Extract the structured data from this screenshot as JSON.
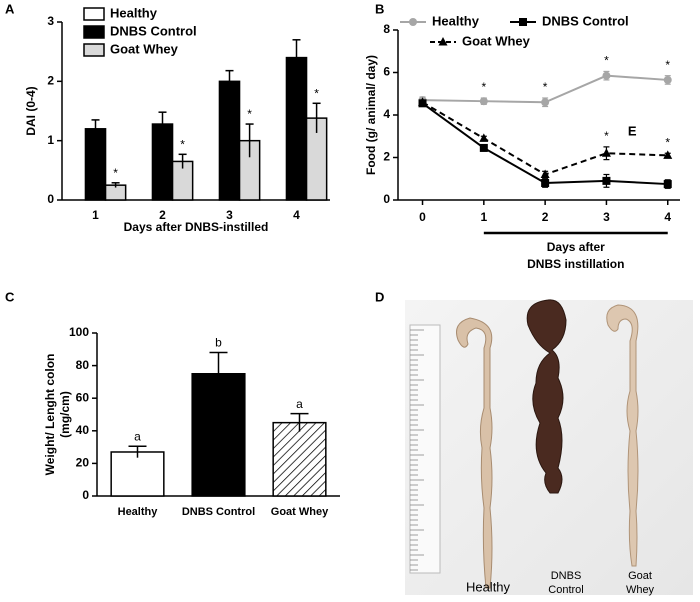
{
  "chart_data": [
    {
      "type": "bar",
      "panel": "A",
      "ylabel": "DAI (0-4)",
      "xlabel": "Days after DNBS-instilled",
      "categories": [
        "1",
        "2",
        "3",
        "4"
      ],
      "ylim": [
        0,
        3
      ],
      "yticks": [
        0,
        1,
        2,
        3
      ],
      "legend": "top-left",
      "series": [
        {
          "name": "Healthy",
          "color": "#ffffff",
          "values": [
            0,
            0,
            0,
            0
          ]
        },
        {
          "name": "DNBS Control",
          "color": "#000000",
          "values": [
            1.2,
            1.28,
            2.0,
            2.4
          ],
          "errors": [
            0.15,
            0.2,
            0.18,
            0.3
          ]
        },
        {
          "name": "Goat Whey",
          "color": "#d9d9d9",
          "values": [
            0.25,
            0.65,
            1.0,
            1.38
          ],
          "errors": [
            0.04,
            0.12,
            0.28,
            0.25
          ],
          "point_labels": [
            "*",
            "*",
            "*",
            "*"
          ]
        }
      ]
    },
    {
      "type": "line",
      "panel": "B",
      "ylabel": "Food (g/ animal/ day)",
      "xlabel": [
        "Days after",
        "DNBS instillation"
      ],
      "x": [
        0,
        1,
        2,
        3,
        4
      ],
      "xlim": [
        -0.4,
        4.2
      ],
      "xticks": [
        0,
        1,
        2,
        3,
        4
      ],
      "ylim": [
        0,
        8
      ],
      "yticks": [
        0,
        2,
        4,
        6,
        8
      ],
      "legend": "top",
      "series": [
        {
          "name": "Healthy",
          "color": "#a6a6a6",
          "marker": "circle",
          "dashed": false,
          "values": [
            4.7,
            4.65,
            4.6,
            5.85,
            5.65
          ],
          "errors": [
            0.15,
            0.15,
            0.2,
            0.2,
            0.2
          ],
          "point_labels": [
            null,
            "*",
            "*",
            "*",
            "*"
          ]
        },
        {
          "name": "DNBS Control",
          "color": "#000000",
          "marker": "square",
          "dashed": false,
          "values": [
            4.55,
            2.45,
            0.8,
            0.9,
            0.75
          ],
          "errors": [
            0.1,
            0.1,
            0.2,
            0.3,
            0.2
          ]
        },
        {
          "name": "Goat Whey",
          "color": "#000000",
          "marker": "triangle",
          "dashed": true,
          "values": [
            4.6,
            2.9,
            1.2,
            2.2,
            2.1
          ],
          "errors": [
            0.1,
            0.1,
            0.15,
            0.3,
            0.1
          ],
          "point_labels": [
            null,
            null,
            null,
            "*",
            "*"
          ]
        }
      ],
      "annotations": [
        {
          "text": "E",
          "x": 3.35,
          "y": 3.2
        }
      ]
    },
    {
      "type": "bar",
      "panel": "C",
      "ylabel": [
        "Weight/ Lenght colon",
        "(mg/cm)"
      ],
      "categories": [
        "Healthy",
        "DNBS Control",
        "Goat Whey"
      ],
      "ylim": [
        0,
        100
      ],
      "yticks": [
        0,
        20,
        40,
        60,
        80,
        100
      ],
      "series": [
        {
          "colors": [
            "#ffffff",
            "#000000",
            "#ffffff"
          ],
          "hatch": [
            false,
            false,
            true
          ],
          "values": [
            27,
            75,
            45
          ],
          "errors": [
            3.5,
            13,
            5.5
          ],
          "point_labels": [
            "a",
            "b",
            "a"
          ]
        }
      ]
    }
  ],
  "photo": {
    "panel": "D",
    "labels": [
      [
        "Healthy"
      ],
      [
        "DNBS",
        "Control"
      ],
      [
        "Goat",
        "Whey"
      ]
    ]
  }
}
